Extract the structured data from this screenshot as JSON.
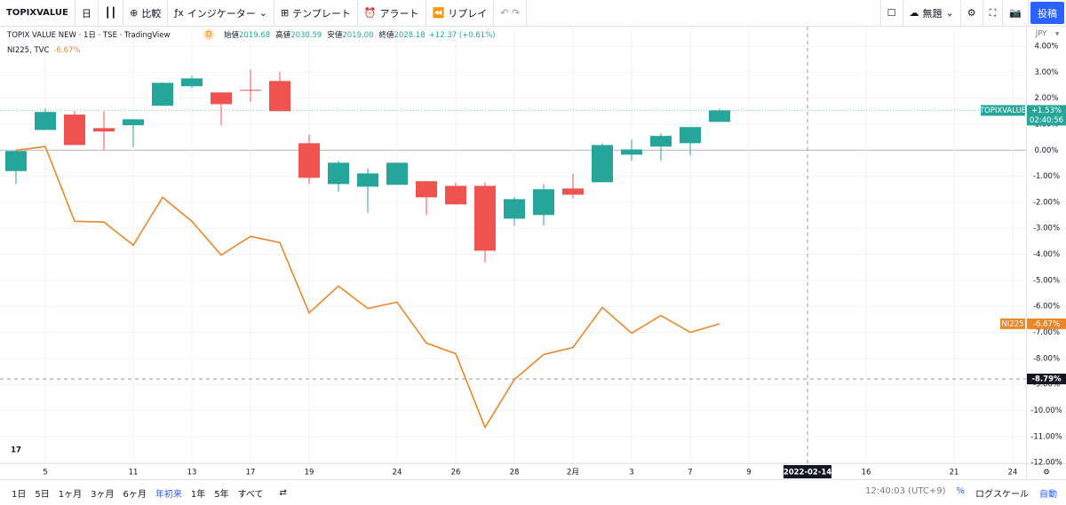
{
  "toolbar": {
    "symbol": "TOPIXVALUE",
    "interval": "日",
    "compare": "比較",
    "indicators": "インジケーター",
    "templates": "テンプレート",
    "alert": "アラート",
    "replay": "リプレイ",
    "layout_name": "無題",
    "publish": "投稿"
  },
  "legend": {
    "main": "TOPIX VALUE NEW · 1日 · TSE · TradingView",
    "badge": "D",
    "ohlc": [
      {
        "label": "始値",
        "value": "2019.68"
      },
      {
        "label": "高値",
        "value": "2030.59"
      },
      {
        "label": "安値",
        "value": "2019.00"
      },
      {
        "label": "終値",
        "value": "2028.18"
      }
    ],
    "change": "+12.37 (+0.61%)",
    "compare": "NI225, TVC",
    "compare_change": "-6.67%"
  },
  "chart_data": {
    "type": "candlestick",
    "categories": [
      null,
      "5",
      null,
      null,
      "11",
      null,
      "13",
      null,
      "17",
      null,
      "19",
      null,
      null,
      "24",
      null,
      "26",
      null,
      "28",
      null,
      "2月",
      null,
      "3",
      null,
      "7",
      null,
      "9",
      null,
      "2022-02-14",
      null,
      "16",
      null,
      null,
      "21",
      null,
      "24"
    ],
    "series": [
      {
        "name": "TOPIXVALUE",
        "type": "candlestick",
        "up_color": "#26a69a",
        "down_color": "#ef5350",
        "open": [
          -0.8,
          0.78,
          1.37,
          0.85,
          0.96,
          1.71,
          2.46,
          2.22,
          2.32,
          2.66,
          0.27,
          -1.3,
          -1.4,
          -1.33,
          -1.19,
          -1.37,
          -1.37,
          -2.63,
          -2.49,
          -1.47,
          -1.23,
          -0.17,
          0.14,
          0.27,
          1.09,
          null,
          null,
          null,
          null,
          null,
          null,
          null,
          null,
          null,
          null
        ],
        "high": [
          0.0,
          1.6,
          1.5,
          1.5,
          1.19,
          2.6,
          2.86,
          2.22,
          3.1,
          3.0,
          0.6,
          -0.41,
          -0.7,
          -0.48,
          -1.19,
          -1.24,
          -1.24,
          -1.8,
          -1.3,
          -0.9,
          0.27,
          0.41,
          0.65,
          0.89,
          1.6,
          null,
          null,
          null,
          null,
          null,
          null,
          null,
          null,
          null,
          null
        ],
        "low": [
          -1.3,
          0.78,
          0.2,
          0.0,
          0.12,
          1.71,
          2.4,
          0.96,
          1.85,
          1.5,
          -1.3,
          -1.6,
          -2.4,
          -1.33,
          -2.5,
          -2.08,
          -4.3,
          -2.9,
          -2.9,
          -1.85,
          -1.23,
          -0.41,
          -0.41,
          -0.2,
          1.09,
          null,
          null,
          null,
          null,
          null,
          null,
          null,
          null,
          null,
          null
        ],
        "close": [
          -0.03,
          1.47,
          0.2,
          0.72,
          1.19,
          2.59,
          2.76,
          1.77,
          2.3,
          1.5,
          -1.06,
          -0.48,
          -0.89,
          -0.48,
          -1.81,
          -2.08,
          -3.86,
          -1.88,
          -1.5,
          -1.71,
          0.2,
          0.03,
          0.55,
          0.89,
          1.53,
          null,
          null,
          null,
          null,
          null,
          null,
          null,
          null,
          null,
          null
        ],
        "last_value_label": "+1.53%",
        "countdown": "02:40:56"
      },
      {
        "name": "NI225",
        "type": "line",
        "color": "#e8882c",
        "values": [
          0.0,
          0.14,
          -2.73,
          -2.76,
          -3.65,
          -1.81,
          -2.73,
          -4.03,
          -3.31,
          -3.55,
          -6.25,
          -5.22,
          -6.08,
          -5.84,
          -7.41,
          -7.82,
          -10.65,
          -8.81,
          -7.85,
          -7.58,
          -6.04,
          -7.03,
          -6.35,
          -7.0,
          -6.67,
          null,
          null,
          null,
          null,
          null,
          null,
          null,
          null,
          null,
          null
        ],
        "last_value_label": "-6.67%"
      }
    ],
    "currency": "JPY",
    "ylim": [
      -12.03,
      4.75
    ],
    "yticks": [
      {
        "value": 4,
        "label": "4.00%"
      },
      {
        "value": 3,
        "label": "3.00%"
      },
      {
        "value": 2,
        "label": "2.00%"
      },
      {
        "value": 1,
        "label": "1.00%"
      },
      {
        "value": 0,
        "label": "0.00%"
      },
      {
        "value": -1,
        "label": "-1.00%"
      },
      {
        "value": -2,
        "label": "-2.00%"
      },
      {
        "value": -3,
        "label": "-3.00%"
      },
      {
        "value": -4,
        "label": "-4.00%"
      },
      {
        "value": -5,
        "label": "-5.00%"
      },
      {
        "value": -6,
        "label": "-6.00%"
      },
      {
        "value": -7,
        "label": "-7.00%"
      },
      {
        "value": -8,
        "label": "-8.00%"
      },
      {
        "value": -9,
        "label": "-9.00%"
      },
      {
        "value": -10,
        "label": "-10.00%"
      },
      {
        "value": -11,
        "label": "-11.00%"
      },
      {
        "value": -12,
        "label": "-12.00%"
      }
    ],
    "grid": true,
    "crosshair": {
      "value": -8.79,
      "label": "-8.79%",
      "x": "2022-02-14"
    }
  },
  "bottom_bar": {
    "ranges": [
      "1日",
      "5日",
      "1ヶ月",
      "3ヶ月",
      "6ヶ月",
      "年初来",
      "1年",
      "5年",
      "すべて"
    ],
    "active_range": "年初来",
    "clock": "12:40:03 (UTC+9)",
    "percent": "%",
    "log_scale": "ログスケール",
    "auto": "自動"
  }
}
